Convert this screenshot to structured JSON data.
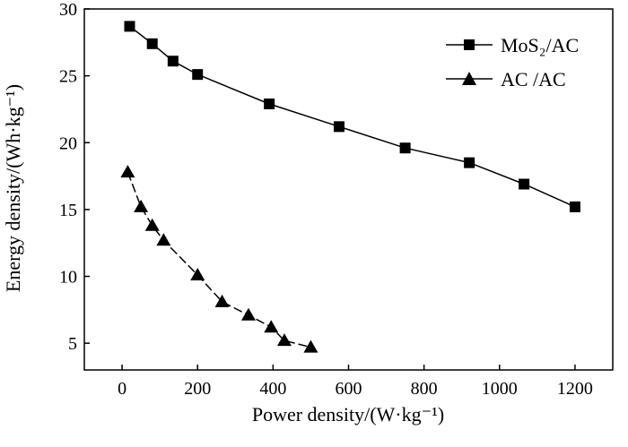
{
  "chart_data": {
    "type": "line",
    "xlabel": "Power density/(W·kg⁻¹)",
    "ylabel": "Energy density/(Wh·kg⁻¹)",
    "xlim": [
      -100,
      1300
    ],
    "ylim": [
      3,
      30
    ],
    "x_ticks": [
      0,
      200,
      400,
      600,
      800,
      1000,
      1200
    ],
    "y_ticks": [
      5,
      10,
      15,
      20,
      25,
      30
    ],
    "grid": false,
    "legend_position": "top-right",
    "series": [
      {
        "name": "MoS₂/AC",
        "marker": "square",
        "x": [
          20,
          80,
          135,
          200,
          390,
          575,
          750,
          920,
          1065,
          1200
        ],
        "y": [
          28.7,
          27.4,
          26.1,
          25.1,
          22.9,
          21.2,
          19.6,
          18.5,
          16.9,
          15.2
        ]
      },
      {
        "name": "AC /AC",
        "marker": "triangle",
        "x": [
          15,
          50,
          80,
          110,
          200,
          265,
          335,
          395,
          430,
          500
        ],
        "y": [
          17.8,
          15.2,
          13.8,
          12.7,
          10.1,
          8.1,
          7.1,
          6.2,
          5.2,
          4.7
        ]
      }
    ]
  }
}
